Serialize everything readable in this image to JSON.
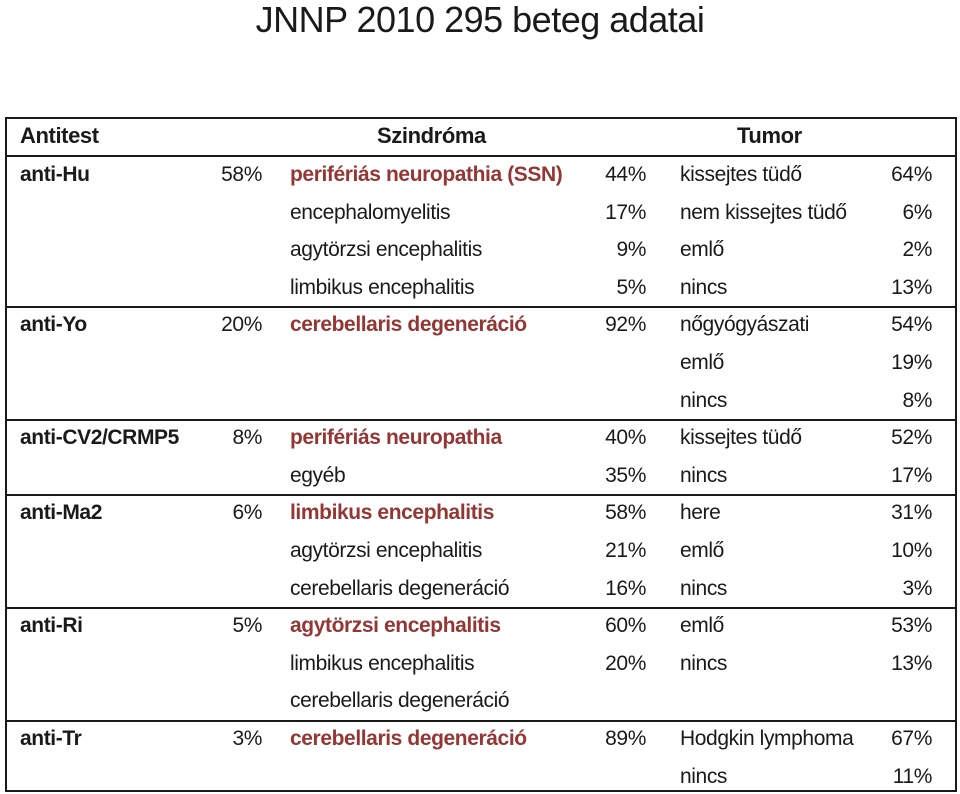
{
  "title": "JNNP 2010 295 beteg adatai",
  "headers": {
    "antibody": "Antitest",
    "syndrome": "Szindróma",
    "tumor": "Tumor"
  },
  "colors": {
    "primary_syndrome": "#943634",
    "text": "#1a1a1a"
  },
  "groups": [
    {
      "antibody": "anti-Hu",
      "antibody_pct": "58%",
      "rows": [
        {
          "syndrome": "perifériás neuropathia (SSN)",
          "syndrome_pct": "44%",
          "primary": true,
          "tumor": "kissejtes tüdő",
          "tumor_pct": "64%"
        },
        {
          "syndrome": "encephalomyelitis",
          "syndrome_pct": "17%",
          "primary": false,
          "tumor": "nem kissejtes tüdő",
          "tumor_pct": "6%"
        },
        {
          "syndrome": "agytörzsi encephalitis",
          "syndrome_pct": "9%",
          "primary": false,
          "tumor": "emlő",
          "tumor_pct": "2%"
        },
        {
          "syndrome": "limbikus encephalitis",
          "syndrome_pct": "5%",
          "primary": false,
          "tumor": "nincs",
          "tumor_pct": "13%"
        }
      ]
    },
    {
      "antibody": "anti-Yo",
      "antibody_pct": "20%",
      "rows": [
        {
          "syndrome": "cerebellaris degeneráció",
          "syndrome_pct": "92%",
          "primary": true,
          "tumor": "nőgyógyászati",
          "tumor_pct": "54%"
        },
        {
          "syndrome": "",
          "syndrome_pct": "",
          "primary": false,
          "tumor": "emlő",
          "tumor_pct": "19%"
        },
        {
          "syndrome": "",
          "syndrome_pct": "",
          "primary": false,
          "tumor": "nincs",
          "tumor_pct": "8%"
        }
      ]
    },
    {
      "antibody": "anti-CV2/CRMP5",
      "antibody_pct": "8%",
      "rows": [
        {
          "syndrome": "perifériás neuropathia",
          "syndrome_pct": "40%",
          "primary": true,
          "tumor": "kissejtes tüdő",
          "tumor_pct": "52%"
        },
        {
          "syndrome": "egyéb",
          "syndrome_pct": "35%",
          "primary": false,
          "tumor": "nincs",
          "tumor_pct": "17%"
        }
      ]
    },
    {
      "antibody": "anti-Ma2",
      "antibody_pct": "6%",
      "rows": [
        {
          "syndrome": "limbikus encephalitis",
          "syndrome_pct": "58%",
          "primary": true,
          "tumor": "here",
          "tumor_pct": "31%"
        },
        {
          "syndrome": "agytörzsi encephalitis",
          "syndrome_pct": "21%",
          "primary": false,
          "tumor": "emlő",
          "tumor_pct": "10%"
        },
        {
          "syndrome": "cerebellaris degeneráció",
          "syndrome_pct": "16%",
          "primary": false,
          "tumor": "nincs",
          "tumor_pct": "3%"
        }
      ]
    },
    {
      "antibody": "anti-Ri",
      "antibody_pct": "5%",
      "rows": [
        {
          "syndrome": "agytörzsi encephalitis",
          "syndrome_pct": "60%",
          "primary": true,
          "tumor": "emlő",
          "tumor_pct": "53%"
        },
        {
          "syndrome": "limbikus encephalitis",
          "syndrome_pct": "20%",
          "primary": false,
          "tumor": "nincs",
          "tumor_pct": "13%"
        },
        {
          "syndrome": "cerebellaris degeneráció",
          "syndrome_pct": "",
          "primary": false,
          "tumor": "",
          "tumor_pct": ""
        }
      ]
    },
    {
      "antibody": "anti-Tr",
      "antibody_pct": "3%",
      "rows": [
        {
          "syndrome": "cerebellaris degeneráció",
          "syndrome_pct": "89%",
          "primary": true,
          "tumor": "Hodgkin lymphoma",
          "tumor_pct": "67%"
        },
        {
          "syndrome": "",
          "syndrome_pct": "",
          "primary": false,
          "tumor": "nincs",
          "tumor_pct": "11%"
        }
      ]
    }
  ]
}
